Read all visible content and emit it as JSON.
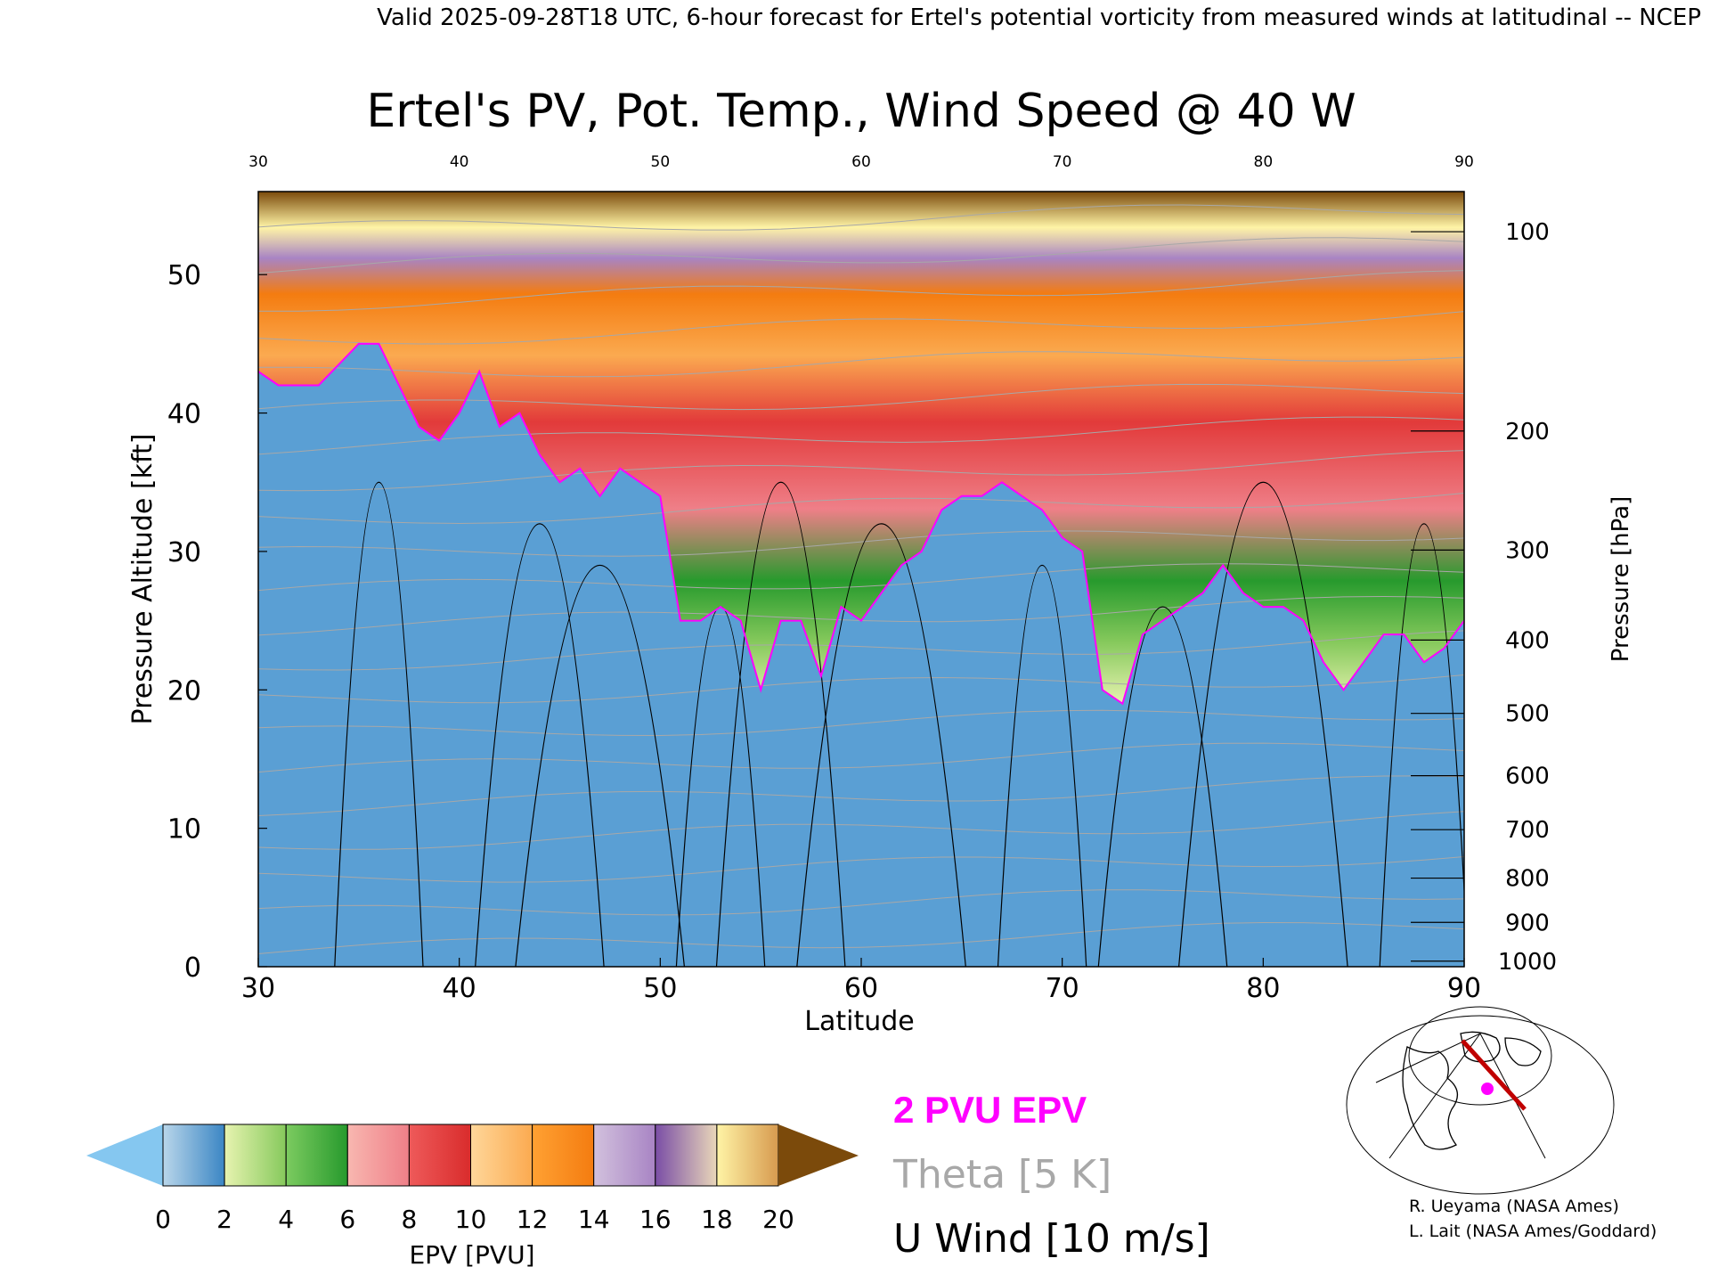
{
  "header": {
    "valid_line": "Valid 2025-09-28T18 UTC, 6-hour forecast for Ertel's potential vorticity from measured winds at latitudinal -- NCEP"
  },
  "chart_data": {
    "type": "heatmap",
    "title": "Ertel's PV, Pot. Temp., Wind Speed @ 40 W",
    "xlabel": "Latitude",
    "ylabel_left": "Pressure Altitude [kft]",
    "ylabel_right": "Pressure [hPa]",
    "xlim": [
      30,
      90
    ],
    "ylim": [
      0,
      56
    ],
    "x_ticks": [
      30,
      40,
      50,
      60,
      70,
      80,
      90
    ],
    "top_x_ticks": [
      30,
      40,
      50,
      60,
      70,
      80,
      90
    ],
    "y_ticks": [
      0,
      10,
      20,
      30,
      40,
      50
    ],
    "pressure_ticks": [
      {
        "label": "100",
        "kft": 53.1
      },
      {
        "label": "200",
        "kft": 38.7
      },
      {
        "label": "300",
        "kft": 30.1
      },
      {
        "label": "400",
        "kft": 23.6
      },
      {
        "label": "500",
        "kft": 18.3
      },
      {
        "label": "600",
        "kft": 13.8
      },
      {
        "label": "700",
        "kft": 9.9
      },
      {
        "label": "800",
        "kft": 6.4
      },
      {
        "label": "900",
        "kft": 3.2
      },
      {
        "label": "1000",
        "kft": 0.4
      }
    ],
    "tropopause_2pvu": {
      "lat": [
        30,
        31,
        33,
        35,
        36,
        37,
        38,
        39,
        40,
        41,
        42,
        43,
        44,
        45,
        46,
        47,
        48,
        49,
        50,
        51,
        52,
        53,
        54,
        55,
        56,
        57,
        58,
        59,
        60,
        61,
        62,
        63,
        64,
        65,
        66,
        67,
        68,
        69,
        70,
        71,
        72,
        73,
        74,
        75,
        76,
        77,
        78,
        79,
        80,
        81,
        82,
        83,
        84,
        85,
        86,
        87,
        88,
        89,
        90
      ],
      "kft": [
        43,
        42,
        42,
        45,
        45,
        42,
        39,
        38,
        40,
        43,
        39,
        40,
        37,
        35,
        36,
        34,
        36,
        35,
        34,
        25,
        25,
        26,
        25,
        20,
        25,
        25,
        21,
        26,
        25,
        27,
        29,
        30,
        33,
        34,
        34,
        35,
        34,
        33,
        31,
        30,
        20,
        19,
        24,
        25,
        26,
        27,
        29,
        27,
        26,
        26,
        25,
        22,
        20,
        22,
        24,
        24,
        22,
        23,
        25
      ]
    },
    "epv_colorbar": {
      "label": "EPV [PVU]",
      "ticks": [
        0,
        2,
        4,
        6,
        8,
        10,
        12,
        14,
        16,
        18,
        20
      ],
      "bins": [
        {
          "lo": 0,
          "hi": 2,
          "from": "#b9d6ea",
          "to": "#3b86c4"
        },
        {
          "lo": 2,
          "hi": 4,
          "from": "#e7f3b0",
          "to": "#86c95c"
        },
        {
          "lo": 4,
          "hi": 6,
          "from": "#7ccb60",
          "to": "#279a2d"
        },
        {
          "lo": 6,
          "hi": 8,
          "from": "#f8b7b0",
          "to": "#ef7f88"
        },
        {
          "lo": 8,
          "hi": 10,
          "from": "#ee5a5a",
          "to": "#d92c2c"
        },
        {
          "lo": 10,
          "hi": 12,
          "from": "#ffd79a",
          "to": "#fbaa50"
        },
        {
          "lo": 12,
          "hi": 14,
          "from": "#ffa133",
          "to": "#f47c10"
        },
        {
          "lo": 14,
          "hi": 16,
          "from": "#d2c1dd",
          "to": "#a884c4"
        },
        {
          "lo": 16,
          "hi": 18,
          "from": "#7a4ea6",
          "to": "#e9d7b9"
        },
        {
          "lo": 18,
          "hi": 20,
          "from": "#fff4a6",
          "to": "#d79a4f"
        }
      ],
      "under_color": "#85c7f0",
      "over_color": "#7b4a0b"
    },
    "legend": {
      "epv_line": "2 PVU EPV",
      "epv_line_color": "#ff00ff",
      "theta": "Theta [5 K]",
      "theta_color": "#a8a8a8",
      "uwind": "U Wind [10 m/s]",
      "uwind_color": "#000000"
    }
  },
  "credits": {
    "line1": "R. Ueyama (NASA Ames)",
    "line2": "L. Lait (NASA Ames/Goddard)"
  },
  "inset_map": {
    "path_color": "#c00000",
    "marker_color": "#ff00ff"
  }
}
